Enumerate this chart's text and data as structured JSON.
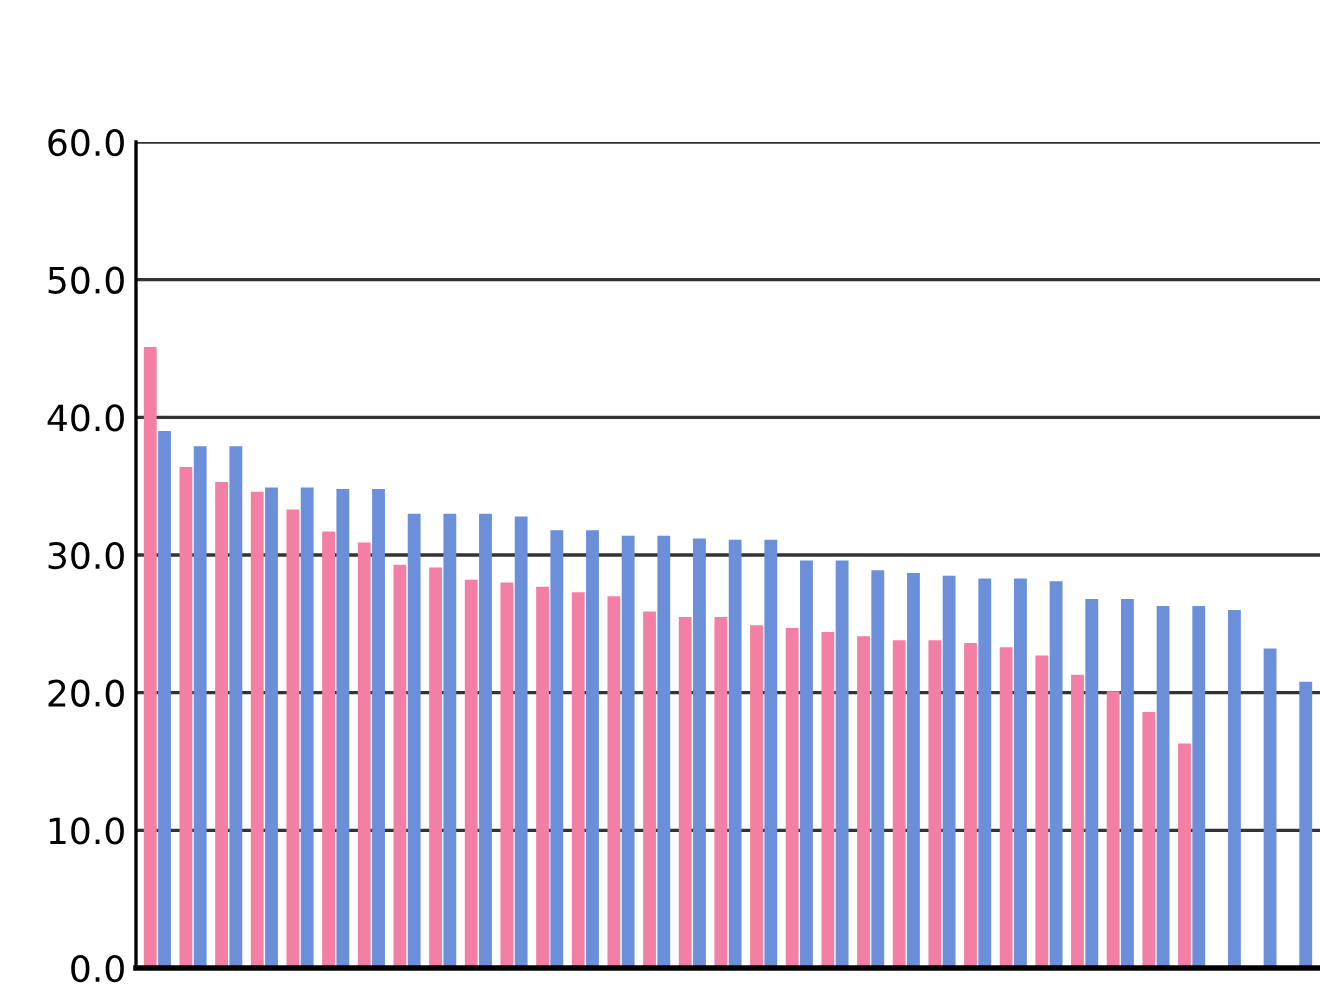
{
  "chart_data": {
    "type": "bar",
    "categories": [
      null,
      null,
      null,
      null,
      null,
      null,
      null,
      null,
      null,
      null,
      null,
      null,
      null,
      null,
      null,
      null,
      null,
      null,
      null,
      null,
      null,
      null,
      null,
      null,
      null,
      null,
      null,
      null,
      null,
      null,
      null,
      null,
      null
    ],
    "series": [
      {
        "color": "#f47fa5",
        "values": [
          45.1,
          36.4,
          35.3,
          34.6,
          33.3,
          31.7,
          30.9,
          29.3,
          29.1,
          28.2,
          28.0,
          27.7,
          27.3,
          27.0,
          25.9,
          25.5,
          25.5,
          24.9,
          24.7,
          24.4,
          24.1,
          23.8,
          23.8,
          23.6,
          23.3,
          22.7,
          21.3,
          20.1,
          18.6,
          16.3,
          null,
          null,
          null
        ]
      },
      {
        "color": "#6b8fd9",
        "values": [
          39.0,
          37.9,
          37.9,
          34.9,
          34.9,
          34.8,
          34.8,
          33.0,
          33.0,
          33.0,
          32.8,
          31.8,
          31.8,
          31.4,
          31.4,
          31.2,
          31.1,
          31.1,
          29.6,
          29.6,
          28.9,
          28.7,
          28.5,
          28.3,
          28.3,
          28.1,
          26.8,
          26.8,
          26.3,
          26.3,
          26.0,
          23.2,
          20.8
        ]
      }
    ],
    "ylim": [
      0,
      60
    ],
    "yticks": [
      {
        "value": 0,
        "label": "0.0"
      },
      {
        "value": 10,
        "label": "10.0"
      },
      {
        "value": 20,
        "label": "20.0"
      },
      {
        "value": 30,
        "label": "30.0"
      },
      {
        "value": 40,
        "label": "40.0"
      },
      {
        "value": 50,
        "label": "50.0"
      },
      {
        "value": 60,
        "label": "60.0"
      }
    ],
    "grid": "y",
    "tick_labels": "y"
  }
}
